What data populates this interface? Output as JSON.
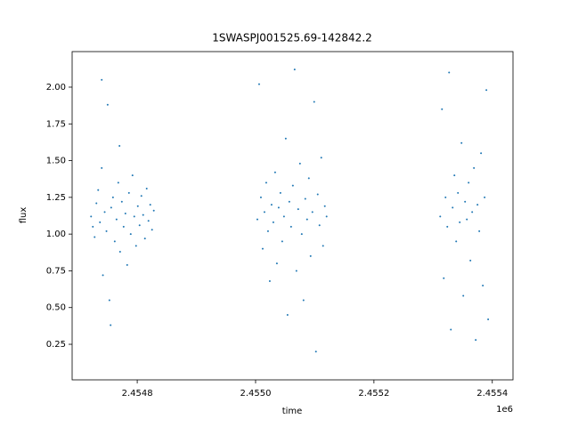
{
  "chart_data": {
    "type": "scatter",
    "title": "1SWASPJ001525.69-142842.2",
    "x_label": "time",
    "y_label": "flux",
    "x_offset_label": "1e6",
    "xlim": [
      2454690,
      2455435
    ],
    "ylim": [
      0.008,
      2.242
    ],
    "xticks": [
      {
        "value": 2454800,
        "label": "2.4548"
      },
      {
        "value": 2455000,
        "label": "2.4550"
      },
      {
        "value": 2455200,
        "label": "2.4552"
      },
      {
        "value": 2455400,
        "label": "2.4554"
      }
    ],
    "yticks": [
      0.25,
      {
        "value": 0.5,
        "label": "0.50"
      },
      0.75,
      {
        "value": 1.0,
        "label": "1.00"
      },
      1.25,
      {
        "value": 1.5,
        "label": "1.50"
      },
      1.75,
      {
        "value": 2.0,
        "label": "2.00"
      }
    ],
    "grid": false,
    "color": "#1f77b4",
    "x": [
      2454722,
      2454725,
      2454728,
      2454731,
      2454734,
      2454737,
      2454740,
      2454742,
      2454745,
      2454748,
      2454750,
      2454753,
      2454756,
      2454759,
      2454762,
      2454765,
      2454768,
      2454771,
      2454774,
      2454777,
      2454780,
      2454783,
      2454786,
      2454789,
      2454792,
      2454795,
      2454798,
      2454801,
      2454804,
      2454807,
      2454810,
      2454813,
      2454816,
      2454819,
      2454822,
      2454825,
      2454828,
      2454740,
      2454755,
      2454770,
      2455003,
      2455006,
      2455009,
      2455012,
      2455015,
      2455018,
      2455021,
      2455024,
      2455027,
      2455030,
      2455033,
      2455036,
      2455039,
      2455042,
      2455045,
      2455048,
      2455051,
      2455054,
      2455057,
      2455060,
      2455063,
      2455066,
      2455069,
      2455072,
      2455075,
      2455078,
      2455081,
      2455084,
      2455087,
      2455090,
      2455093,
      2455096,
      2455099,
      2455102,
      2455105,
      2455108,
      2455111,
      2455114,
      2455117,
      2455120,
      2455312,
      2455315,
      2455318,
      2455321,
      2455324,
      2455327,
      2455330,
      2455333,
      2455336,
      2455339,
      2455342,
      2455345,
      2455348,
      2455351,
      2455354,
      2455357,
      2455360,
      2455363,
      2455366,
      2455369,
      2455372,
      2455375,
      2455378,
      2455381,
      2455384,
      2455387,
      2455390,
      2455393
    ],
    "values": [
      1.12,
      1.05,
      0.98,
      1.21,
      1.3,
      1.08,
      1.45,
      0.72,
      1.15,
      1.02,
      1.88,
      0.55,
      1.18,
      1.25,
      0.95,
      1.1,
      1.35,
      0.88,
      1.22,
      1.05,
      1.14,
      0.79,
      1.28,
      1.0,
      1.4,
      1.12,
      0.92,
      1.19,
      1.06,
      1.26,
      1.13,
      0.97,
      1.31,
      1.09,
      1.2,
      1.03,
      1.16,
      2.05,
      0.38,
      1.6,
      1.1,
      2.02,
      1.25,
      0.9,
      1.15,
      1.35,
      1.02,
      0.68,
      1.2,
      1.08,
      1.42,
      0.8,
      1.18,
      1.28,
      0.95,
      1.12,
      1.65,
      0.45,
      1.22,
      1.05,
      1.33,
      2.12,
      0.75,
      1.17,
      1.48,
      1.0,
      0.55,
      1.24,
      1.1,
      1.38,
      0.85,
      1.15,
      1.9,
      0.2,
      1.27,
      1.06,
      1.52,
      0.92,
      1.19,
      1.12,
      1.12,
      1.85,
      0.7,
      1.25,
      1.05,
      2.1,
      0.35,
      1.18,
      1.4,
      0.95,
      1.28,
      1.08,
      1.62,
      0.58,
      1.22,
      1.1,
      1.35,
      0.82,
      1.15,
      1.45,
      0.28,
      1.2,
      1.02,
      1.55,
      0.65,
      1.25,
      1.98,
      0.42
    ]
  }
}
